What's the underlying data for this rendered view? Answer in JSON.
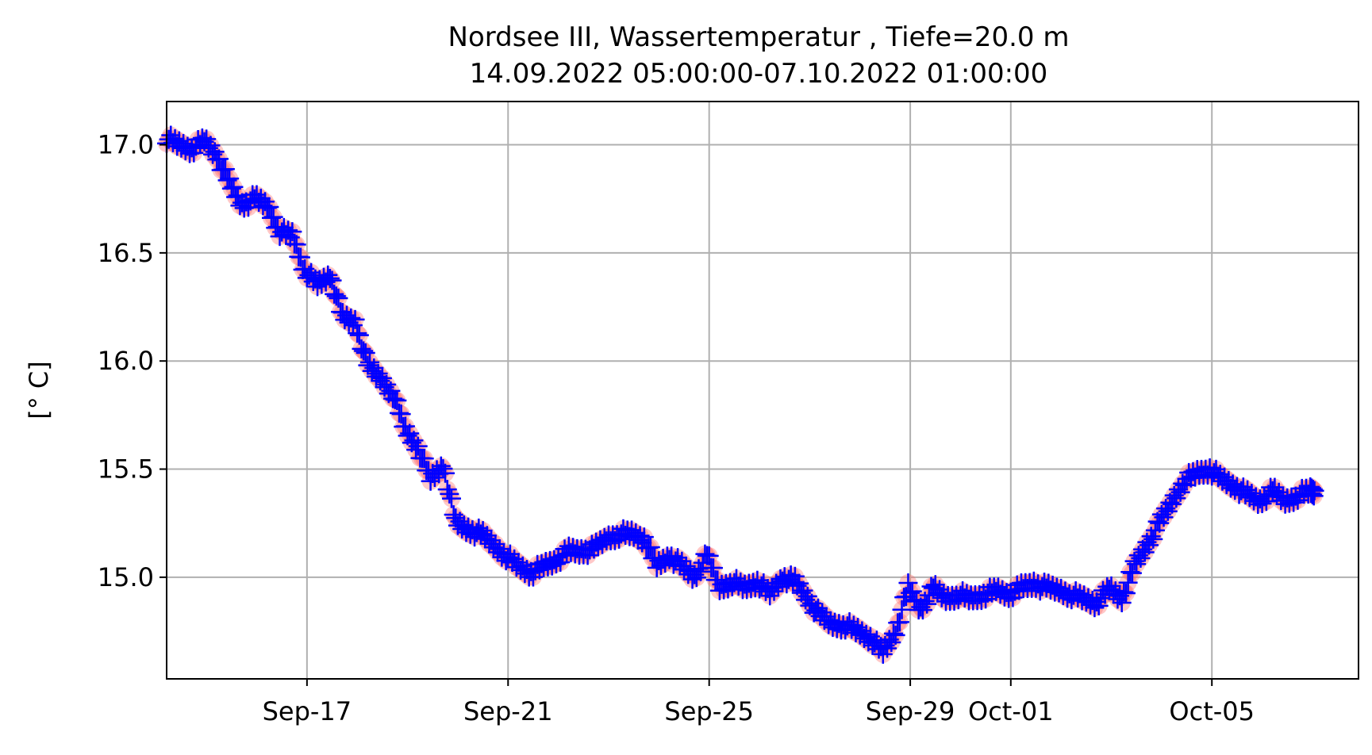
{
  "chart_data": {
    "type": "scatter",
    "title": "Nordsee III, Wassertemperatur , Tiefe=20.0 m",
    "subtitle": "14.09.2022 05:00:00-07.10.2022 01:00:00",
    "xlabel": "",
    "ylabel": "[° C]",
    "x_start": "2022-09-14 05:00",
    "x_end": "2022-10-07 01:00",
    "xlim": [
      "2022-09-14 05:00",
      "2022-10-07 22:00"
    ],
    "ylim": [
      14.53,
      17.2
    ],
    "grid": true,
    "x_ticks": [
      {
        "date": "2022-09-17",
        "label": "Sep-17"
      },
      {
        "date": "2022-09-21",
        "label": "Sep-21"
      },
      {
        "date": "2022-09-25",
        "label": "Sep-25"
      },
      {
        "date": "2022-09-29",
        "label": "Sep-29"
      },
      {
        "date": "2022-10-01",
        "label": "Oct-01"
      },
      {
        "date": "2022-10-05",
        "label": "Oct-05"
      }
    ],
    "y_ticks": [
      {
        "value": 15.0,
        "label": "15.0"
      },
      {
        "value": 15.5,
        "label": "15.5"
      },
      {
        "value": 16.0,
        "label": "16.0"
      },
      {
        "value": 16.5,
        "label": "16.5"
      },
      {
        "value": 17.0,
        "label": "17.0"
      }
    ],
    "series": [
      {
        "marker": "plus",
        "color": "#0000ff",
        "halo_color": "#ff6060",
        "points": [
          [
            "2022-09-14 05:00",
            17.03
          ],
          [
            "2022-09-14 11:00",
            17.0
          ],
          [
            "2022-09-14 17:00",
            16.98
          ],
          [
            "2022-09-14 23:00",
            17.02
          ],
          [
            "2022-09-15 05:00",
            16.95
          ],
          [
            "2022-09-15 11:00",
            16.82
          ],
          [
            "2022-09-15 17:00",
            16.72
          ],
          [
            "2022-09-15 23:00",
            16.75
          ],
          [
            "2022-09-16 05:00",
            16.72
          ],
          [
            "2022-09-16 11:00",
            16.6
          ],
          [
            "2022-09-16 17:00",
            16.58
          ],
          [
            "2022-09-16 23:00",
            16.42
          ],
          [
            "2022-09-17 05:00",
            16.35
          ],
          [
            "2022-09-17 11:00",
            16.4
          ],
          [
            "2022-09-17 17:00",
            16.2
          ],
          [
            "2022-09-17 23:00",
            16.18
          ],
          [
            "2022-09-18 05:00",
            15.98
          ],
          [
            "2022-09-18 11:00",
            15.92
          ],
          [
            "2022-09-18 17:00",
            15.85
          ],
          [
            "2022-09-18 23:00",
            15.68
          ],
          [
            "2022-09-19 05:00",
            15.6
          ],
          [
            "2022-09-19 11:00",
            15.45
          ],
          [
            "2022-09-19 17:00",
            15.52
          ],
          [
            "2022-09-19 23:00",
            15.25
          ],
          [
            "2022-09-20 05:00",
            15.22
          ],
          [
            "2022-09-20 11:00",
            15.2
          ],
          [
            "2022-09-20 17:00",
            15.15
          ],
          [
            "2022-09-20 23:00",
            15.1
          ],
          [
            "2022-09-21 05:00",
            15.05
          ],
          [
            "2022-09-21 11:00",
            15.02
          ],
          [
            "2022-09-21 17:00",
            15.05
          ],
          [
            "2022-09-21 23:00",
            15.08
          ],
          [
            "2022-09-22 05:00",
            15.12
          ],
          [
            "2022-09-22 11:00",
            15.12
          ],
          [
            "2022-09-22 17:00",
            15.13
          ],
          [
            "2022-09-22 23:00",
            15.18
          ],
          [
            "2022-09-23 05:00",
            15.2
          ],
          [
            "2022-09-23 11:00",
            15.2
          ],
          [
            "2022-09-23 17:00",
            15.18
          ],
          [
            "2022-09-23 23:00",
            15.05
          ],
          [
            "2022-09-24 05:00",
            15.1
          ],
          [
            "2022-09-24 11:00",
            15.05
          ],
          [
            "2022-09-24 17:00",
            15.0
          ],
          [
            "2022-09-24 23:00",
            15.1
          ],
          [
            "2022-09-25 05:00",
            14.95
          ],
          [
            "2022-09-25 11:00",
            14.98
          ],
          [
            "2022-09-25 17:00",
            14.95
          ],
          [
            "2022-09-25 23:00",
            14.98
          ],
          [
            "2022-09-26 05:00",
            14.92
          ],
          [
            "2022-09-26 11:00",
            15.0
          ],
          [
            "2022-09-26 17:00",
            14.98
          ],
          [
            "2022-09-26 23:00",
            14.9
          ],
          [
            "2022-09-27 05:00",
            14.82
          ],
          [
            "2022-09-27 11:00",
            14.78
          ],
          [
            "2022-09-27 17:00",
            14.78
          ],
          [
            "2022-09-27 23:00",
            14.75
          ],
          [
            "2022-09-28 05:00",
            14.72
          ],
          [
            "2022-09-28 11:00",
            14.65
          ],
          [
            "2022-09-28 17:00",
            14.75
          ],
          [
            "2022-09-28 23:00",
            14.95
          ],
          [
            "2022-09-29 05:00",
            14.85
          ],
          [
            "2022-09-29 11:00",
            14.95
          ],
          [
            "2022-09-29 17:00",
            14.9
          ],
          [
            "2022-09-29 23:00",
            14.92
          ],
          [
            "2022-09-30 05:00",
            14.9
          ],
          [
            "2022-09-30 11:00",
            14.92
          ],
          [
            "2022-09-30 17:00",
            14.94
          ],
          [
            "2022-09-30 23:00",
            14.92
          ],
          [
            "2022-10-01 05:00",
            14.95
          ],
          [
            "2022-10-01 11:00",
            14.97
          ],
          [
            "2022-10-01 17:00",
            14.95
          ],
          [
            "2022-10-01 23:00",
            14.94
          ],
          [
            "2022-10-02 05:00",
            14.92
          ],
          [
            "2022-10-02 11:00",
            14.9
          ],
          [
            "2022-10-02 17:00",
            14.88
          ],
          [
            "2022-10-02 23:00",
            14.95
          ],
          [
            "2022-10-03 05:00",
            14.9
          ],
          [
            "2022-10-03 11:00",
            15.05
          ],
          [
            "2022-10-03 17:00",
            15.15
          ],
          [
            "2022-10-03 23:00",
            15.25
          ],
          [
            "2022-10-04 05:00",
            15.35
          ],
          [
            "2022-10-04 11:00",
            15.45
          ],
          [
            "2022-10-04 17:00",
            15.48
          ],
          [
            "2022-10-04 23:00",
            15.5
          ],
          [
            "2022-10-05 05:00",
            15.45
          ],
          [
            "2022-10-05 11:00",
            15.42
          ],
          [
            "2022-10-05 17:00",
            15.38
          ],
          [
            "2022-10-05 23:00",
            15.35
          ],
          [
            "2022-10-06 05:00",
            15.4
          ],
          [
            "2022-10-06 11:00",
            15.35
          ],
          [
            "2022-10-06 17:00",
            15.38
          ],
          [
            "2022-10-06 23:00",
            15.4
          ],
          [
            "2022-10-07 01:00",
            15.4
          ]
        ]
      }
    ]
  }
}
